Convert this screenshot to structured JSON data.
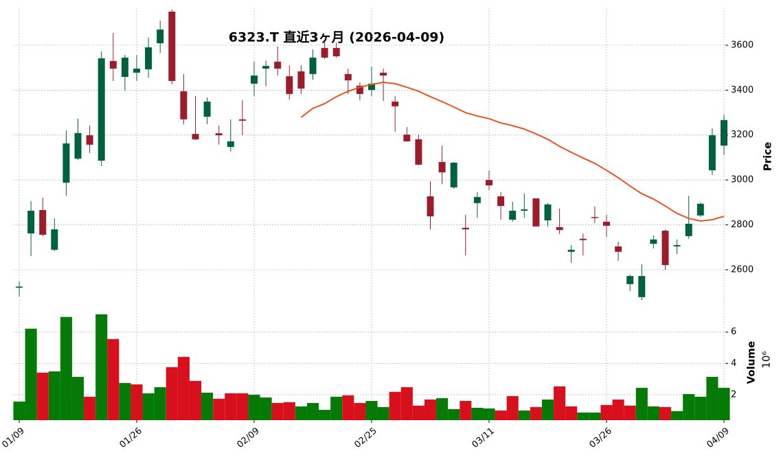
{
  "chart_data": {
    "type": "candlestick",
    "title": "6323.T  直近3ヶ月  (2026-04-09)",
    "y_label": "Price",
    "volume_label": "Volume",
    "volume_scale_label": "10⁶",
    "categories": [
      "01/09",
      null,
      null,
      null,
      null,
      null,
      null,
      null,
      null,
      null,
      "01/26",
      null,
      null,
      null,
      null,
      null,
      null,
      null,
      null,
      null,
      "02/09",
      null,
      null,
      null,
      null,
      null,
      null,
      null,
      null,
      null,
      "02/25",
      null,
      null,
      null,
      null,
      null,
      null,
      null,
      null,
      null,
      "03/11",
      null,
      null,
      null,
      null,
      null,
      null,
      null,
      null,
      null,
      "03/26",
      null,
      null,
      null,
      null,
      null,
      null,
      null,
      null,
      null,
      "04/09"
    ],
    "open": [
      2520,
      2762,
      2866,
      2689,
      2988,
      3095,
      3199,
      3086,
      3530,
      3459,
      3478,
      3493,
      3609,
      3750,
      3395,
      3205,
      3282,
      3208,
      3147,
      3270,
      3429,
      3496,
      3527,
      3462,
      3484,
      3472,
      3588,
      3588,
      3472,
      3420,
      3401,
      3478,
      3349,
      3202,
      3181,
      2927,
      3080,
      2967,
      2787,
      2897,
      3000,
      2927,
      2823,
      2863,
      2918,
      2820,
      2790,
      2680,
      2738,
      2835,
      2814,
      2704,
      2536,
      2478,
      2716,
      2774,
      2704,
      2750,
      2842,
      3043,
      3153
    ],
    "high": [
      2548,
      2906,
      2921,
      2829,
      3221,
      3273,
      3242,
      3572,
      3655,
      3557,
      3557,
      3634,
      3710,
      3759,
      3472,
      3374,
      3368,
      3242,
      3270,
      3355,
      3527,
      3532,
      3594,
      3511,
      3511,
      3582,
      3618,
      3612,
      3496,
      3435,
      3505,
      3496,
      3374,
      3236,
      3202,
      2994,
      3153,
      3080,
      2845,
      2946,
      3043,
      2946,
      2903,
      2940,
      2918,
      2897,
      2872,
      2710,
      2762,
      2881,
      2845,
      2725,
      2579,
      2624,
      2753,
      2780,
      2735,
      2930,
      2900,
      3230,
      3291
    ],
    "low": [
      2481,
      2661,
      2750,
      2683,
      2930,
      3090,
      3120,
      3062,
      3441,
      3398,
      3441,
      3456,
      3566,
      3426,
      3248,
      3178,
      3248,
      3157,
      3126,
      3199,
      3374,
      3417,
      3465,
      3358,
      3383,
      3447,
      3539,
      3545,
      3383,
      3355,
      3374,
      3352,
      3215,
      3170,
      3065,
      2780,
      2982,
      2961,
      2664,
      2832,
      2955,
      2823,
      2814,
      2832,
      2793,
      2793,
      2759,
      2631,
      2664,
      2808,
      2747,
      2640,
      2505,
      2465,
      2695,
      2600,
      2670,
      2738,
      2835,
      3022,
      3111
    ],
    "close": [
      2525,
      2863,
      2756,
      2780,
      3163,
      3209,
      3157,
      3542,
      3496,
      3545,
      3496,
      3591,
      3670,
      3441,
      3270,
      3181,
      3349,
      3199,
      3172,
      3264,
      3465,
      3508,
      3496,
      3383,
      3407,
      3545,
      3545,
      3551,
      3444,
      3383,
      3429,
      3465,
      3328,
      3172,
      3068,
      2838,
      3034,
      3077,
      2780,
      2924,
      2976,
      2884,
      2863,
      2869,
      2793,
      2891,
      2777,
      2689,
      2732,
      2832,
      2796,
      2680,
      2572,
      2572,
      2735,
      2621,
      2710,
      2805,
      2894,
      3199,
      3267
    ],
    "ma": [
      null,
      null,
      null,
      null,
      null,
      null,
      null,
      null,
      null,
      null,
      null,
      null,
      null,
      null,
      null,
      null,
      null,
      null,
      null,
      null,
      null,
      null,
      null,
      null,
      3279,
      3319,
      3340,
      3371,
      3395,
      3413,
      3426,
      3435,
      3429,
      3413,
      3395,
      3371,
      3349,
      3325,
      3300,
      3285,
      3273,
      3254,
      3242,
      3227,
      3205,
      3181,
      3150,
      3123,
      3098,
      3074,
      3043,
      3010,
      2973,
      2939,
      2915,
      2884,
      2851,
      2829,
      2817,
      2823,
      2838
    ],
    "ma_color": "#e8541a",
    "up_color": "#00613e",
    "down_color": "#9c1c2b",
    "volume": [
      1.56,
      6.22,
      3.41,
      3.49,
      6.97,
      3.14,
      1.87,
      7.14,
      5.56,
      2.75,
      2.66,
      2.09,
      2.48,
      3.76,
      4.42,
      2.88,
      2.13,
      1.74,
      2.09,
      2.09,
      2.0,
      1.82,
      1.47,
      1.52,
      1.25,
      1.47,
      1.03,
      1.87,
      1.96,
      1.47,
      1.6,
      1.21,
      2.18,
      2.48,
      1.3,
      1.69,
      1.78,
      1.08,
      1.6,
      1.16,
      1.12,
      0.99,
      1.91,
      0.99,
      1.21,
      1.69,
      2.53,
      1.25,
      0.86,
      0.86,
      1.34,
      1.69,
      1.3,
      2.44,
      1.25,
      1.21,
      0.95,
      2.04,
      1.87,
      3.14,
      2.44
    ],
    "volume_colors": [
      "#067a06",
      "#067a06",
      "#d8101e",
      "#067a06",
      "#067a06",
      "#067a06",
      "#d8101e",
      "#067a06",
      "#d8101e",
      "#067a06",
      "#d8101e",
      "#067a06",
      "#067a06",
      "#d8101e",
      "#d8101e",
      "#d8101e",
      "#067a06",
      "#d8101e",
      "#d8101e",
      "#d8101e",
      "#067a06",
      "#067a06",
      "#d8101e",
      "#d8101e",
      "#067a06",
      "#067a06",
      "#067a06",
      "#067a06",
      "#d8101e",
      "#d8101e",
      "#067a06",
      "#067a06",
      "#d8101e",
      "#d8101e",
      "#d8101e",
      "#d8101e",
      "#067a06",
      "#067a06",
      "#d8101e",
      "#067a06",
      "#067a06",
      "#d8101e",
      "#d8101e",
      "#067a06",
      "#d8101e",
      "#067a06",
      "#d8101e",
      "#d8101e",
      "#067a06",
      "#067a06",
      "#d8101e",
      "#d8101e",
      "#d8101e",
      "#067a06",
      "#067a06",
      "#d8101e",
      "#067a06",
      "#067a06",
      "#067a06",
      "#067a06",
      "#067a06"
    ],
    "ylim": [
      2456,
      3765
    ],
    "yticks": [
      2600,
      2800,
      3000,
      3200,
      3400,
      3600
    ],
    "volume_ylim": [
      0.37,
      7.7
    ],
    "volume_yticks": [
      2,
      4,
      6
    ],
    "grid": true
  }
}
